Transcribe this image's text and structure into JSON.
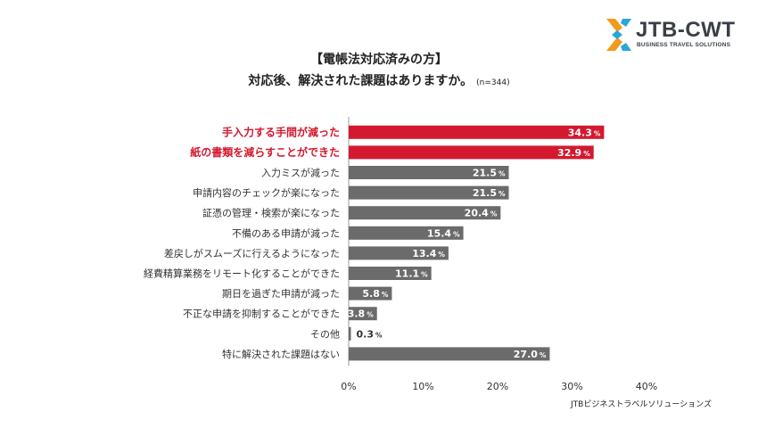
{
  "logo": {
    "name": "JTB-CWT",
    "tagline": "BUSINESS TRAVEL SOLUTIONS"
  },
  "title": {
    "line1": "【電帳法対応済みの方】",
    "line2": "対応後、解決された課題はありますか。",
    "sample": "(n=344)"
  },
  "source": "JTBビジネストラベルソリューションズ",
  "colors": {
    "highlight": "#d3192f",
    "bar": "#6b6b6b",
    "axis": "#9a9a9a",
    "grid": "#d9d9d9"
  },
  "chart_data": {
    "type": "bar",
    "orientation": "horizontal",
    "categories": [
      "手入力する手間が減った",
      "紙の書類を減らすことができた",
      "入力ミスが減った",
      "申請内容のチェックが楽になった",
      "証憑の管理・検索が楽になった",
      "不備のある申請が減った",
      "差戻しがスムーズに行えるようになった",
      "経費精算業務をリモート化することができた",
      "期日を過ぎた申請が減った",
      "不正な申請を抑制することができた",
      "その他",
      "特に解決された課題はない"
    ],
    "values": [
      34.3,
      32.9,
      21.5,
      21.5,
      20.4,
      15.4,
      13.4,
      11.1,
      5.8,
      3.8,
      0.3,
      27.0
    ],
    "value_labels": [
      "34.3",
      "32.9",
      "21.5",
      "21.5",
      "20.4",
      "15.4",
      "13.4",
      "11.1",
      "5.8",
      "3.8",
      "0.3",
      "27.0"
    ],
    "value_unit": "%",
    "highlighted": [
      true,
      true,
      false,
      false,
      false,
      false,
      false,
      false,
      false,
      false,
      false,
      false
    ],
    "xlim": [
      0,
      40
    ],
    "xticks": [
      0,
      10,
      20,
      30,
      40
    ],
    "xtick_labels": [
      "0%",
      "10%",
      "20%",
      "30%",
      "40%"
    ],
    "grid": false
  }
}
